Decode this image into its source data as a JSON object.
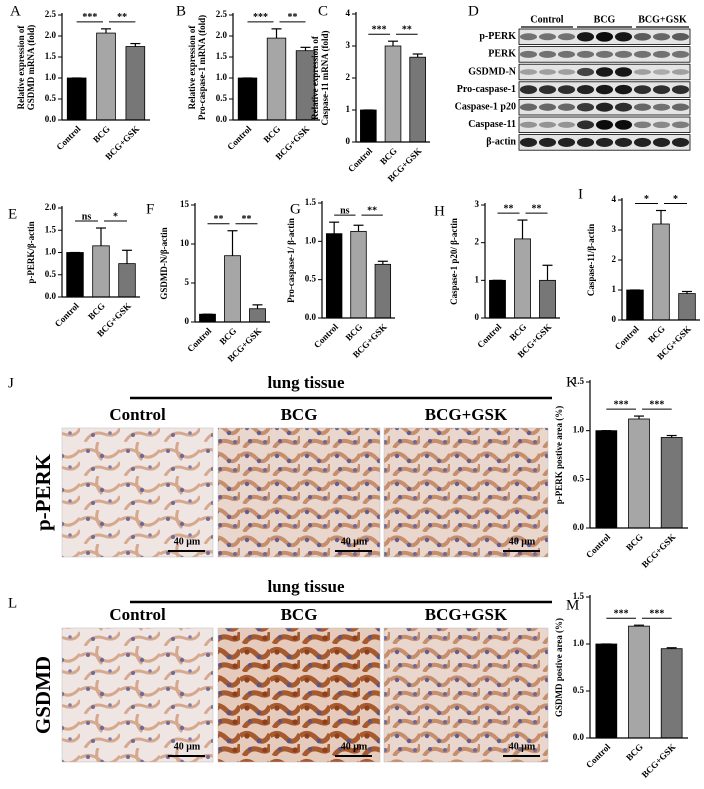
{
  "chart_data": [
    {
      "type": "bar",
      "panel": "A",
      "ylabel": [
        "Relative expression of",
        "GSDMD mRNA (fold)"
      ],
      "categories": [
        "Control",
        "BCG",
        "BCG+GSK"
      ],
      "values": [
        1.0,
        2.07,
        1.75
      ],
      "errors": [
        0,
        0.1,
        0.07
      ],
      "colors": [
        "#000000",
        "#a6a6a6",
        "#777777"
      ],
      "ylim": [
        0,
        2.5
      ],
      "yticks": [
        {
          "value": 0,
          "label": "0.0"
        },
        0.5,
        {
          "value": 1,
          "label": "1.0"
        },
        1.5,
        {
          "value": 2,
          "label": "2.0"
        },
        2.5
      ],
      "significance": [
        "***",
        "**"
      ]
    },
    {
      "type": "bar",
      "panel": "B",
      "ylabel": [
        "Relative expression of",
        "Pro-caspase-1 mRNA (fold)"
      ],
      "categories": [
        "Control",
        "BCG",
        "BCG+GSK"
      ],
      "values": [
        1.0,
        1.95,
        1.65
      ],
      "errors": [
        0,
        0.22,
        0.08
      ],
      "colors": [
        "#000000",
        "#a6a6a6",
        "#777777"
      ],
      "ylim": [
        0,
        2.5
      ],
      "yticks": [
        {
          "value": 0,
          "label": "0.0"
        },
        0.5,
        {
          "value": 1,
          "label": "1.0"
        },
        1.5,
        {
          "value": 2,
          "label": "2.0"
        },
        2.5
      ],
      "significance": [
        "***",
        "**"
      ]
    },
    {
      "type": "bar",
      "panel": "C",
      "ylabel": [
        "Relative expression of",
        "Caspase-11 mRNA (fold)"
      ],
      "categories": [
        "Control",
        "BCG",
        "BCG+GSK"
      ],
      "values": [
        1,
        3.0,
        2.65
      ],
      "errors": [
        0,
        0.15,
        0.1
      ],
      "colors": [
        "#000000",
        "#a6a6a6",
        "#777777"
      ],
      "ylim": [
        0,
        4
      ],
      "yticks": [
        0,
        1,
        2,
        3,
        4
      ],
      "significance": [
        "***",
        "**"
      ]
    },
    {
      "type": "bar",
      "panel": "E",
      "ylabel": [
        "p-PERK/β-actin"
      ],
      "categories": [
        "Control",
        "BCG",
        "BCG+GSK"
      ],
      "values": [
        1.0,
        1.15,
        0.75
      ],
      "errors": [
        0,
        0.4,
        0.3
      ],
      "colors": [
        "#000000",
        "#a6a6a6",
        "#777777"
      ],
      "ylim": [
        0,
        2
      ],
      "yticks": [
        {
          "value": 0,
          "label": "0.0"
        },
        0.5,
        {
          "value": 1,
          "label": "1.0"
        },
        1.5,
        {
          "value": 2,
          "label": "2.0"
        }
      ],
      "significance": [
        "ns",
        "*"
      ]
    },
    {
      "type": "bar",
      "panel": "F",
      "ylabel": [
        "GSDMD-N/β-actin"
      ],
      "categories": [
        "Control",
        "BCG",
        "BCG+GSK"
      ],
      "values": [
        1,
        8.5,
        1.7
      ],
      "errors": [
        0,
        3.2,
        0.5
      ],
      "colors": [
        "#000000",
        "#a6a6a6",
        "#777777"
      ],
      "ylim": [
        0,
        15
      ],
      "yticks": [
        0,
        5,
        10,
        15
      ],
      "significance": [
        "**",
        "**"
      ]
    },
    {
      "type": "bar",
      "panel": "G",
      "ylabel": [
        "Pro-caspase-1/ β-actin"
      ],
      "categories": [
        "Control",
        "BCG",
        "BCG+GSK"
      ],
      "values": [
        1.1,
        1.13,
        0.7
      ],
      "errors": [
        0.15,
        0.08,
        0.04
      ],
      "colors": [
        "#000000",
        "#a6a6a6",
        "#777777"
      ],
      "ylim": [
        0,
        1.5
      ],
      "yticks": [
        {
          "value": 0,
          "label": "0.0"
        },
        0.5,
        {
          "value": 1,
          "label": "1.0"
        },
        1.5
      ],
      "significance": [
        "ns",
        "**"
      ]
    },
    {
      "type": "bar",
      "panel": "H",
      "ylabel": [
        "Caspase-1 p20/ β-actin"
      ],
      "categories": [
        "Control",
        "BCG",
        "BCG+GSK"
      ],
      "values": [
        1,
        2.1,
        1.0
      ],
      "errors": [
        0,
        0.5,
        0.4
      ],
      "colors": [
        "#000000",
        "#a6a6a6",
        "#777777"
      ],
      "ylim": [
        0,
        3
      ],
      "yticks": [
        0,
        1,
        2,
        3
      ],
      "significance": [
        "**",
        "**"
      ]
    },
    {
      "type": "bar",
      "panel": "I",
      "ylabel": [
        "Caspase-11/β-actin"
      ],
      "categories": [
        "Control",
        "BCG",
        "BCG+GSK"
      ],
      "values": [
        1,
        3.2,
        0.88
      ],
      "errors": [
        0,
        0.45,
        0.07
      ],
      "colors": [
        "#000000",
        "#a6a6a6",
        "#777777"
      ],
      "ylim": [
        0,
        4
      ],
      "yticks": [
        0,
        1,
        2,
        3,
        4
      ],
      "significance": [
        "*",
        "*"
      ]
    },
    {
      "type": "bar",
      "panel": "K",
      "ylabel": [
        "p-PERK postive area (%)"
      ],
      "categories": [
        "Control",
        "BCG",
        "BCG+GSK"
      ],
      "values": [
        1.0,
        1.12,
        0.93
      ],
      "errors": [
        0,
        0.03,
        0.02
      ],
      "colors": [
        "#000000",
        "#a6a6a6",
        "#777777"
      ],
      "ylim": [
        0,
        1.5
      ],
      "yticks": [
        {
          "value": 0,
          "label": "0.0"
        },
        0.5,
        {
          "value": 1,
          "label": "1.0"
        },
        1.5
      ],
      "significance": [
        "***",
        "***"
      ]
    },
    {
      "type": "bar",
      "panel": "M",
      "ylabel": [
        "GSDMD postive area (%)"
      ],
      "categories": [
        "Control",
        "BCG",
        "BCG+GSK"
      ],
      "values": [
        1.0,
        1.19,
        0.95
      ],
      "errors": [
        0,
        0.01,
        0.01
      ],
      "colors": [
        "#000000",
        "#a6a6a6",
        "#777777"
      ],
      "ylim": [
        0,
        1.5
      ],
      "yticks": [
        {
          "value": 0,
          "label": "0.0"
        },
        0.5,
        {
          "value": 1,
          "label": "1.0"
        },
        1.5
      ],
      "significance": [
        "***",
        "***"
      ]
    }
  ],
  "blot": {
    "panel": "D",
    "groups": [
      "Control",
      "BCG",
      "BCG+GSK"
    ],
    "rows": [
      "p-PERK",
      "PERK",
      "GSDMD-N",
      "Pro-caspase-1",
      "Caspase-1 p20",
      "Caspase-11",
      "β-actin"
    ]
  },
  "ihc": [
    {
      "panel": "J",
      "title": "lung tissue",
      "stain": "p-PERK",
      "columns": [
        "Control",
        "BCG",
        "BCG+GSK"
      ],
      "scale_bar": "40 μm"
    },
    {
      "panel": "L",
      "title": "lung tissue",
      "stain": "GSDMD",
      "columns": [
        "Control",
        "BCG",
        "BCG+GSK"
      ],
      "scale_bar": "40 μm"
    }
  ]
}
